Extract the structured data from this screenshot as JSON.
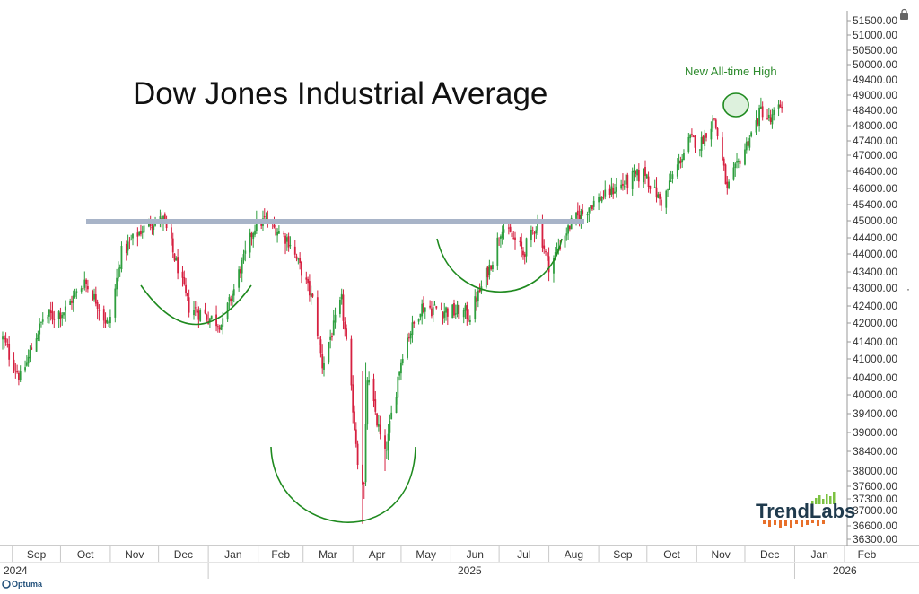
{
  "chart_data": {
    "type": "candlestick",
    "title": "Dow Jones Industrial Average",
    "annotation": "New All-time High",
    "brand": {
      "logo_text": "TrendLabs",
      "logo_text_color": "#1f3a4d",
      "logo_accent": "#e8702a",
      "bar_color": "#7cc242"
    },
    "footer_logo": "Optuma",
    "ylim": [
      36000,
      52000
    ],
    "yticks": [
      "51500.00",
      "51000.00",
      "50500.00",
      "50000.00",
      "49400.00",
      "49000.00",
      "48400.00",
      "48000.00",
      "47400.00",
      "47000.00",
      "46400.00",
      "46000.00",
      "45400.00",
      "45000.00",
      "44400.00",
      "44000.00",
      "43400.00",
      "43000.00",
      "42400.00",
      "42000.00",
      "41400.00",
      "41000.00",
      "40400.00",
      "40000.00",
      "39400.00",
      "39000.00",
      "38400.00",
      "38000.00",
      "37600.00",
      "37300.00",
      "37000.00",
      "36600.00",
      "36300.00"
    ],
    "xticks": [
      "Sep",
      "Oct",
      "Nov",
      "Dec",
      "Jan",
      "Feb",
      "Mar",
      "Apr",
      "May",
      "Jun",
      "Jul",
      "Aug",
      "Sep",
      "Oct",
      "Nov",
      "Dec",
      "Jan",
      "Feb"
    ],
    "year_labels": [
      "2024",
      "2025",
      "2026"
    ],
    "resistance_level": 45000,
    "up_color": "#2e9e3e",
    "down_color": "#d62040",
    "line_color": "#a8b4c8",
    "arc_color": "#1f8a1f",
    "anchors": [
      [
        "2024-08-26",
        41500
      ],
      [
        "2024-09-06",
        40400
      ],
      [
        "2024-09-20",
        42100
      ],
      [
        "2024-10-04",
        42300
      ],
      [
        "2024-10-16",
        43200
      ],
      [
        "2024-10-31",
        41900
      ],
      [
        "2024-11-08",
        44000
      ],
      [
        "2024-11-25",
        44900
      ],
      [
        "2024-12-04",
        45000
      ],
      [
        "2024-12-20",
        42400
      ],
      [
        "2025-01-10",
        41950
      ],
      [
        "2025-01-30",
        44800
      ],
      [
        "2025-02-05",
        45000
      ],
      [
        "2025-02-21",
        44300
      ],
      [
        "2025-03-07",
        42600
      ],
      [
        "2025-03-13",
        40800
      ],
      [
        "2025-03-25",
        42600
      ],
      [
        "2025-04-04",
        38300
      ],
      [
        "2025-04-08",
        37600
      ],
      [
        "2025-04-10",
        40400
      ],
      [
        "2025-04-21",
        38300
      ],
      [
        "2025-05-02",
        41200
      ],
      [
        "2025-05-13",
        42400
      ],
      [
        "2025-05-28",
        42300
      ],
      [
        "2025-06-13",
        42200
      ],
      [
        "2025-06-27",
        43800
      ],
      [
        "2025-07-03",
        44800
      ],
      [
        "2025-07-16",
        44000
      ],
      [
        "2025-07-25",
        44900
      ],
      [
        "2025-08-01",
        43600
      ],
      [
        "2025-08-15",
        44900
      ],
      [
        "2025-08-29",
        45500
      ],
      [
        "2025-09-12",
        46000
      ],
      [
        "2025-09-30",
        46400
      ],
      [
        "2025-10-10",
        45500
      ],
      [
        "2025-10-28",
        47500
      ],
      [
        "2025-11-03",
        47300
      ],
      [
        "2025-11-12",
        48200
      ],
      [
        "2025-11-20",
        45900
      ],
      [
        "2025-12-02",
        47300
      ],
      [
        "2025-12-11",
        48450
      ],
      [
        "2025-12-17",
        48100
      ],
      [
        "2025-12-24",
        48650
      ]
    ]
  }
}
